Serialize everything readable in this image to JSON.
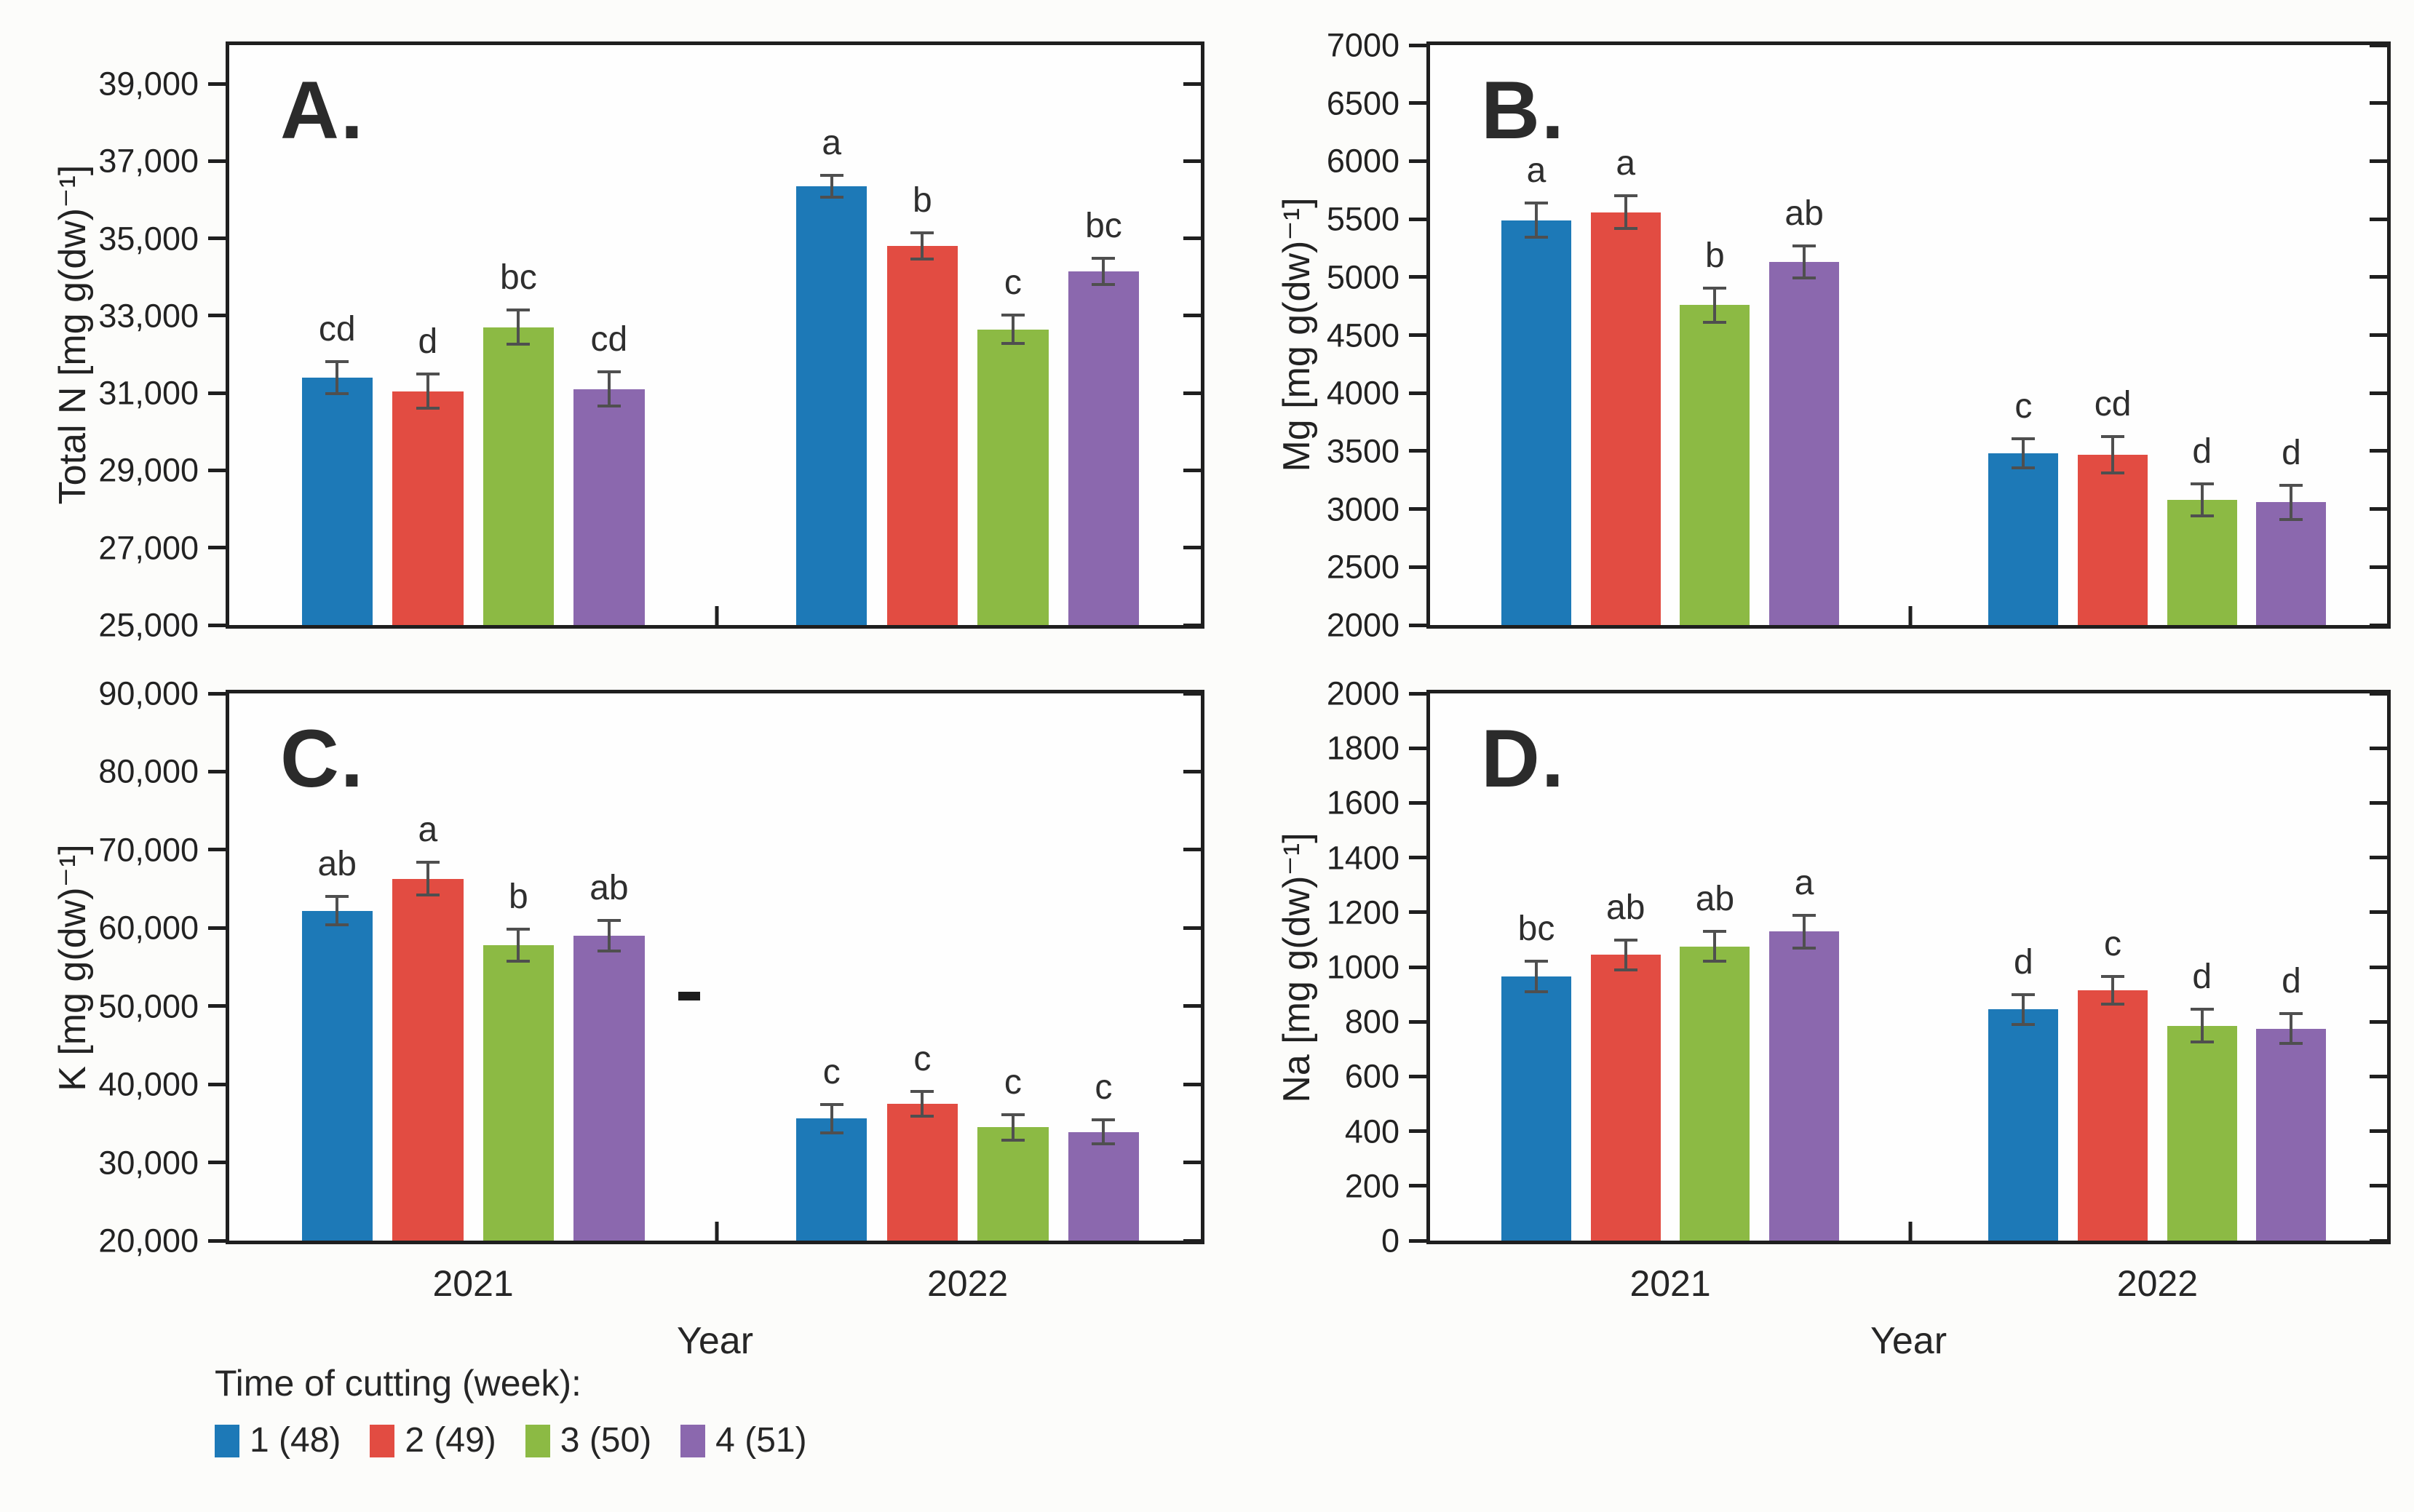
{
  "page": {
    "background": "#fcfcfa"
  },
  "colors": {
    "frame": "#1f1f1f",
    "error_bar": "#4f4f4f",
    "text": "#262626",
    "series": {
      "cutting_1": "#1d79b7",
      "cutting_2": "#e24c42",
      "cutting_3": "#8cba44",
      "cutting_4": "#8b68ae"
    }
  },
  "legend": {
    "title": "Time of cutting (week):",
    "items": [
      {
        "label": "1 (48)",
        "color": "#1d79b7"
      },
      {
        "label": "2 (49)",
        "color": "#e24c42"
      },
      {
        "label": "3 (50)",
        "color": "#8cba44"
      },
      {
        "label": "4 (51)",
        "color": "#8b68ae"
      }
    ]
  },
  "chart_data": [
    {
      "type": "bar",
      "panel_label": "A.",
      "ylabel": "Total N [mg g(dw)⁻¹]",
      "xlabel": "",
      "ylim": [
        25000,
        40000
      ],
      "yticks": {
        "min": 25000,
        "max": 39000,
        "step": 2000
      },
      "comma_ticks": true,
      "grid": false,
      "categories": [
        "2021",
        "2022"
      ],
      "show_x_tick_labels": false,
      "series": [
        {
          "name": "1 (48)",
          "color": "#1d79b7",
          "values": [
            31400,
            36350
          ],
          "errors": [
            450,
            320
          ],
          "letters": [
            "cd",
            "a"
          ]
        },
        {
          "name": "2 (49)",
          "color": "#e24c42",
          "values": [
            31050,
            34800
          ],
          "errors": [
            480,
            380
          ],
          "letters": [
            "d",
            "b"
          ]
        },
        {
          "name": "3 (50)",
          "color": "#8cba44",
          "values": [
            32700,
            32650
          ],
          "errors": [
            480,
            400
          ],
          "letters": [
            "bc",
            "c"
          ]
        },
        {
          "name": "4 (51)",
          "color": "#8b68ae",
          "values": [
            31100,
            34150
          ],
          "errors": [
            480,
            380
          ],
          "letters": [
            "cd",
            "bc"
          ]
        }
      ]
    },
    {
      "type": "bar",
      "panel_label": "B.",
      "ylabel": "Mg [mg g(dw)⁻¹]",
      "xlabel": "",
      "ylim": [
        2000,
        7000
      ],
      "yticks": {
        "min": 2000,
        "max": 7000,
        "step": 500
      },
      "comma_ticks": false,
      "grid": false,
      "categories": [
        "2021",
        "2022"
      ],
      "show_x_tick_labels": false,
      "series": [
        {
          "name": "1 (48)",
          "color": "#1d79b7",
          "values": [
            5490,
            3480
          ],
          "errors": [
            160,
            140
          ],
          "letters": [
            "a",
            "c"
          ]
        },
        {
          "name": "2 (49)",
          "color": "#e24c42",
          "values": [
            5560,
            3470
          ],
          "errors": [
            155,
            170
          ],
          "letters": [
            "a",
            "cd"
          ]
        },
        {
          "name": "3 (50)",
          "color": "#8cba44",
          "values": [
            4760,
            3080
          ],
          "errors": [
            160,
            150
          ],
          "letters": [
            "b",
            "d"
          ]
        },
        {
          "name": "4 (51)",
          "color": "#8b68ae",
          "values": [
            5130,
            3060
          ],
          "errors": [
            150,
            160
          ],
          "letters": [
            "ab",
            "d"
          ]
        }
      ]
    },
    {
      "type": "bar",
      "panel_label": "C.",
      "ylabel": "K [mg g(dw)⁻¹]",
      "xlabel": "Year",
      "ylim": [
        20000,
        90000
      ],
      "yticks": {
        "min": 20000,
        "max": 90000,
        "step": 10000
      },
      "comma_ticks": true,
      "grid": false,
      "categories": [
        "2021",
        "2022"
      ],
      "show_x_tick_labels": true,
      "artifact_dash": {
        "x_frac": 0.462,
        "value": 50700
      },
      "series": [
        {
          "name": "1 (48)",
          "color": "#1d79b7",
          "values": [
            62200,
            35600
          ],
          "errors": [
            2000,
            2000
          ],
          "letters": [
            "ab",
            "c"
          ]
        },
        {
          "name": "2 (49)",
          "color": "#e24c42",
          "values": [
            66300,
            37500
          ],
          "errors": [
            2300,
            1800
          ],
          "letters": [
            "a",
            "c"
          ]
        },
        {
          "name": "3 (50)",
          "color": "#8cba44",
          "values": [
            57800,
            34500
          ],
          "errors": [
            2200,
            1800
          ],
          "letters": [
            "b",
            "c"
          ]
        },
        {
          "name": "4 (51)",
          "color": "#8b68ae",
          "values": [
            59000,
            33900
          ],
          "errors": [
            2100,
            1700
          ],
          "letters": [
            "ab",
            "c"
          ]
        }
      ]
    },
    {
      "type": "bar",
      "panel_label": "D.",
      "ylabel": "Na [mg g(dw)⁻¹]",
      "xlabel": "Year",
      "ylim": [
        0,
        2000
      ],
      "yticks": {
        "min": 0,
        "max": 2000,
        "step": 200
      },
      "comma_ticks": false,
      "grid": false,
      "categories": [
        "2021",
        "2022"
      ],
      "show_x_tick_labels": true,
      "series": [
        {
          "name": "1 (48)",
          "color": "#1d79b7",
          "values": [
            965,
            845
          ],
          "errors": [
            62,
            60
          ],
          "letters": [
            "bc",
            "d"
          ]
        },
        {
          "name": "2 (49)",
          "color": "#e24c42",
          "values": [
            1045,
            915
          ],
          "errors": [
            60,
            55
          ],
          "letters": [
            "ab",
            "c"
          ]
        },
        {
          "name": "3 (50)",
          "color": "#8cba44",
          "values": [
            1075,
            785
          ],
          "errors": [
            60,
            65
          ],
          "letters": [
            "ab",
            "d"
          ]
        },
        {
          "name": "4 (51)",
          "color": "#8b68ae",
          "values": [
            1130,
            775
          ],
          "errors": [
            65,
            60
          ],
          "letters": [
            "a",
            "d"
          ]
        }
      ]
    }
  ]
}
